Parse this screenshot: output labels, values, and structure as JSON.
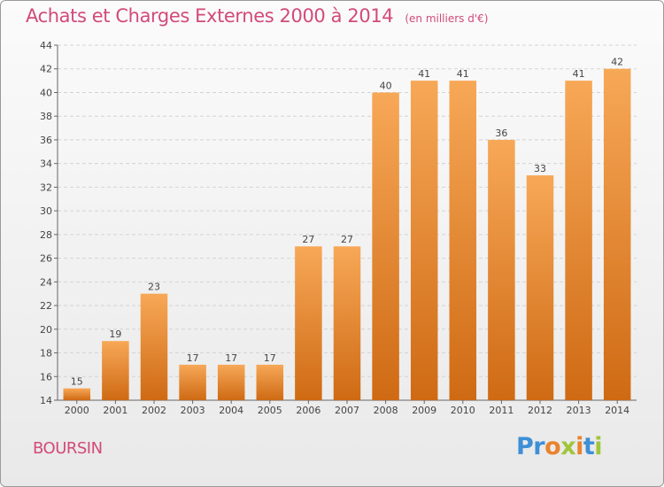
{
  "chart_data": {
    "type": "bar",
    "title": "Achats et Charges Externes 2000 à 2014",
    "subtitle": "(en milliers d'€)",
    "categories": [
      "2000",
      "2001",
      "2002",
      "2003",
      "2004",
      "2005",
      "2006",
      "2007",
      "2008",
      "2009",
      "2010",
      "2011",
      "2012",
      "2013",
      "2014"
    ],
    "values": [
      15,
      19,
      23,
      17,
      17,
      17,
      27,
      27,
      40,
      41,
      41,
      36,
      33,
      41,
      42
    ],
    "ylim": [
      14,
      44
    ],
    "yticks": [
      14,
      16,
      18,
      20,
      22,
      24,
      26,
      28,
      30,
      32,
      34,
      36,
      38,
      40,
      42,
      44
    ],
    "grid": true,
    "bar_color_top": "#f7a857",
    "bar_color_bottom": "#cf6a14"
  },
  "location": "BOURSIN",
  "logo": {
    "letters": [
      "P",
      "r",
      "o",
      "x",
      "i",
      "t",
      "i"
    ],
    "colors": [
      "#3d8fd6",
      "#3d8fd6",
      "#e9832d",
      "#a0c53a",
      "#e9832d",
      "#3d8fd6",
      "#a0c53a"
    ]
  }
}
